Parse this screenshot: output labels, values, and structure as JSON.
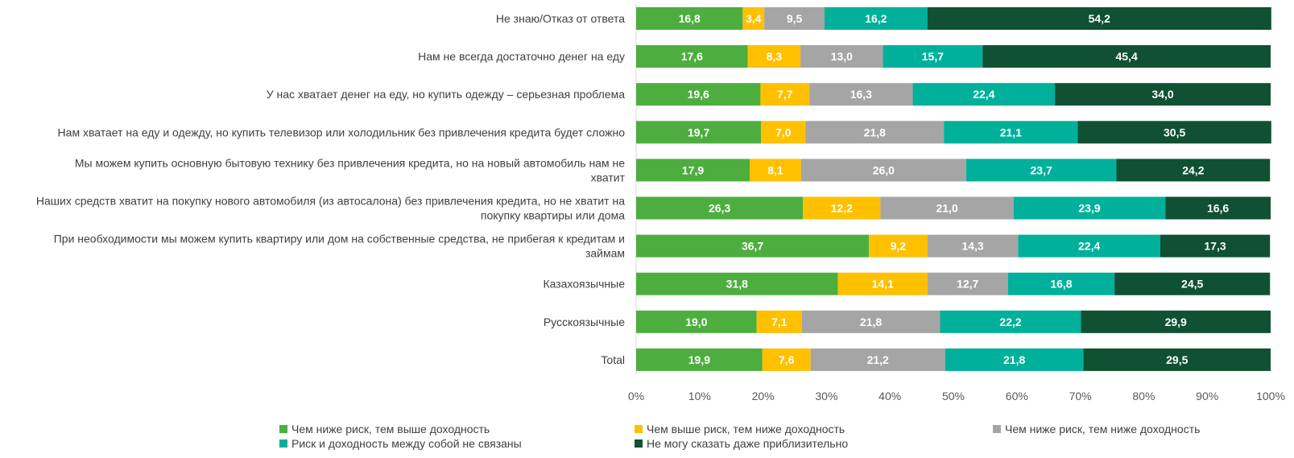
{
  "chart_data": {
    "type": "bar",
    "orientation": "horizontal",
    "stacked": true,
    "percent_stacked": true,
    "categories": [
      "Не знаю/Отказ от ответа",
      "Нам не всегда достаточно денег на еду",
      "У нас хватает денег на еду, но купить одежду – серьезная проблема",
      "Нам хватает на еду и одежду, но купить телевизор или холодильник без привлечения кредита будет сложно",
      "Мы можем купить основную бытовую технику без привлечения кредита, но на новый автомобиль нам не хватит",
      "Наших средств хватит на покупку нового автомобиля (из автосалона) без привлечения кредита, но не хватит на покупку квартиры или дома",
      "При необходимости мы можем купить квартиру или дом на собственные средства, не прибегая к кредитам и займам",
      "Казахоязычные",
      "Русскоязычные",
      "Total"
    ],
    "category_lines": [
      [
        "Не знаю/Отказ от ответа"
      ],
      [
        "Нам не всегда достаточно денег на еду"
      ],
      [
        "У нас хватает денег на еду, но купить одежду – серьезная проблема"
      ],
      [
        "Нам хватает на еду и одежду, но купить телевизор или холодильник без привлечения кредита будет сложно"
      ],
      [
        "Мы можем купить основную бытовую технику без привлечения кредита, но на новый автомобиль нам не",
        "хватит"
      ],
      [
        "Наших средств хватит на покупку нового автомобиля (из автосалона) без привлечения кредита, но не хватит на",
        "покупку квартиры или дома"
      ],
      [
        "При необходимости мы можем купить квартиру или дом на собственные средства, не прибегая к кредитам и",
        "займам"
      ],
      [
        "Казахоязычные"
      ],
      [
        "Русскоязычные"
      ],
      [
        "Total"
      ]
    ],
    "series": [
      {
        "name": "Чем ниже риск, тем выше доходность",
        "color": "#4DAE3F",
        "values": [
          16.8,
          17.6,
          19.6,
          19.7,
          17.9,
          26.3,
          36.7,
          31.8,
          19.0,
          19.9
        ]
      },
      {
        "name": "Чем выше риск, тем ниже доходность",
        "color": "#FFC000",
        "values": [
          3.4,
          8.3,
          7.7,
          7.0,
          8.1,
          12.2,
          9.2,
          14.1,
          7.1,
          7.6
        ]
      },
      {
        "name": "Чем ниже риск, тем ниже доходность",
        "color": "#A5A5A5",
        "values": [
          9.5,
          13.0,
          16.3,
          21.8,
          26.0,
          21.0,
          14.3,
          12.7,
          21.8,
          21.2
        ]
      },
      {
        "name": "Риск и доходность между собой не связаны",
        "color": "#00B09B",
        "values": [
          16.2,
          15.7,
          22.4,
          21.1,
          23.7,
          23.9,
          22.4,
          16.8,
          22.2,
          21.8
        ]
      },
      {
        "name": "Не могу сказать даже приблизительно",
        "color": "#0F5132",
        "values": [
          54.2,
          45.4,
          34.0,
          30.5,
          24.2,
          16.6,
          17.3,
          24.5,
          29.9,
          29.5
        ]
      }
    ],
    "value_labels": [
      [
        "16,8",
        "17,6",
        "19,6",
        "19,7",
        "17,9",
        "26,3",
        "36,7",
        "31,8",
        "19,0",
        "19,9"
      ],
      [
        "3,4",
        "8,3",
        "7,7",
        "7,0",
        "8,1",
        "12,2",
        "9,2",
        "14,1",
        "7,1",
        "7,6"
      ],
      [
        "9,5",
        "13,0",
        "16,3",
        "21,8",
        "26,0",
        "21,0",
        "14,3",
        "12,7",
        "21,8",
        "21,2"
      ],
      [
        "16,2",
        "15,7",
        "22,4",
        "21,1",
        "23,7",
        "23,9",
        "22,4",
        "16,8",
        "22,2",
        "21,8"
      ],
      [
        "54,2",
        "45,4",
        "34,0",
        "30,5",
        "24,2",
        "16,6",
        "17,3",
        "24,5",
        "29,9",
        "29,5"
      ]
    ],
    "x_ticks": [
      "0%",
      "10%",
      "20%",
      "30%",
      "40%",
      "50%",
      "60%",
      "70%",
      "80%",
      "90%",
      "100%"
    ],
    "xlim": [
      0,
      100
    ],
    "grid": false,
    "legend_position": "bottom",
    "title": "",
    "xlabel": "",
    "ylabel": ""
  }
}
